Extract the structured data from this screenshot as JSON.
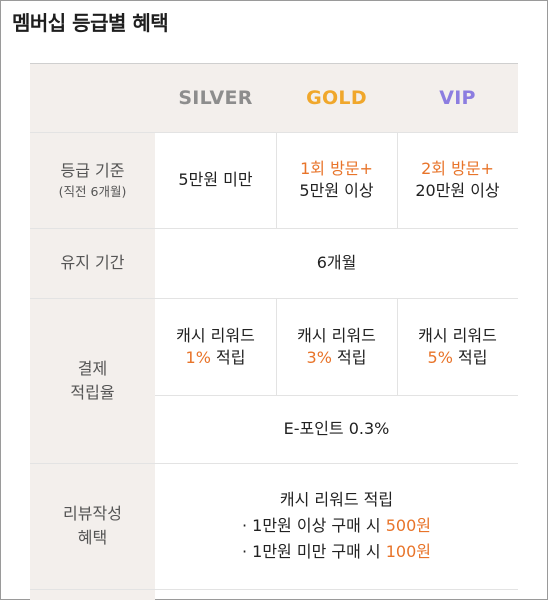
{
  "title": "멤버십 등급별 혜택",
  "colors": {
    "silver": "#8d8d8d",
    "gold": "#f0a72b",
    "vip": "#8c7de0",
    "highlight": "#e8742a",
    "label_bg": "#f3efec"
  },
  "header": {
    "silver": "SILVER",
    "gold": "GOLD",
    "vip": "VIP"
  },
  "criteria": {
    "label": "등급 기준",
    "sublabel": "(직전 6개월)",
    "silver": "5만원 미만",
    "gold_line1": "1회 방문+",
    "gold_line2": "5만원 이상",
    "vip_line1": "2회 방문+",
    "vip_line2": "20만원 이상"
  },
  "period": {
    "label": "유지 기간",
    "value": "6개월"
  },
  "payment": {
    "label_line1": "결제",
    "label_line2": "적립율",
    "reward_label": "캐시 리워드",
    "silver_pct": "1%",
    "gold_pct": "3%",
    "vip_pct": "5%",
    "suffix": " 적립",
    "epoint": "E-포인트 0.3%"
  },
  "review": {
    "label_line1": "리뷰작성",
    "label_line2": "혜택",
    "heading": "캐시 리워드 적립",
    "line1_prefix": "· 1만원 이상 구매 시 ",
    "line1_value": "500원",
    "line2_prefix": "· 1만원 미만 구매 시 ",
    "line2_value": "100원"
  }
}
